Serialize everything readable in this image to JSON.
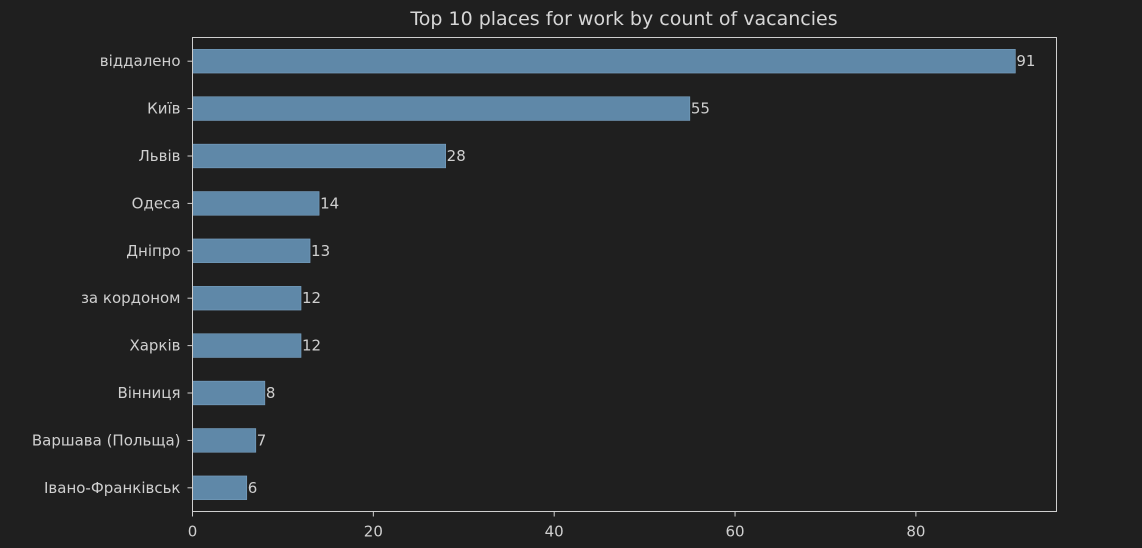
{
  "chart_data": {
    "type": "bar",
    "orientation": "horizontal",
    "title": "Top 10 places for work by count of vacancies",
    "xlabel": "",
    "ylabel": "",
    "categories": [
      "віддалено",
      "Київ",
      "Львів",
      "Одеса",
      "Дніпро",
      "за кордоном",
      "Харків",
      "Вінниця",
      "Варшава (Польща)",
      "Івано-Франківськ"
    ],
    "values": [
      91,
      55,
      28,
      14,
      13,
      12,
      12,
      8,
      7,
      6
    ],
    "xlim": [
      0,
      95.55
    ],
    "xticks": [
      0,
      20,
      40,
      60,
      80
    ],
    "grid": false,
    "colors": {
      "background": "#1f1f1f",
      "bar": "#5f88a8",
      "bar_edge": "#7aa2c2",
      "text": "#cfcfcf",
      "axes": "#cfcfcf"
    }
  }
}
